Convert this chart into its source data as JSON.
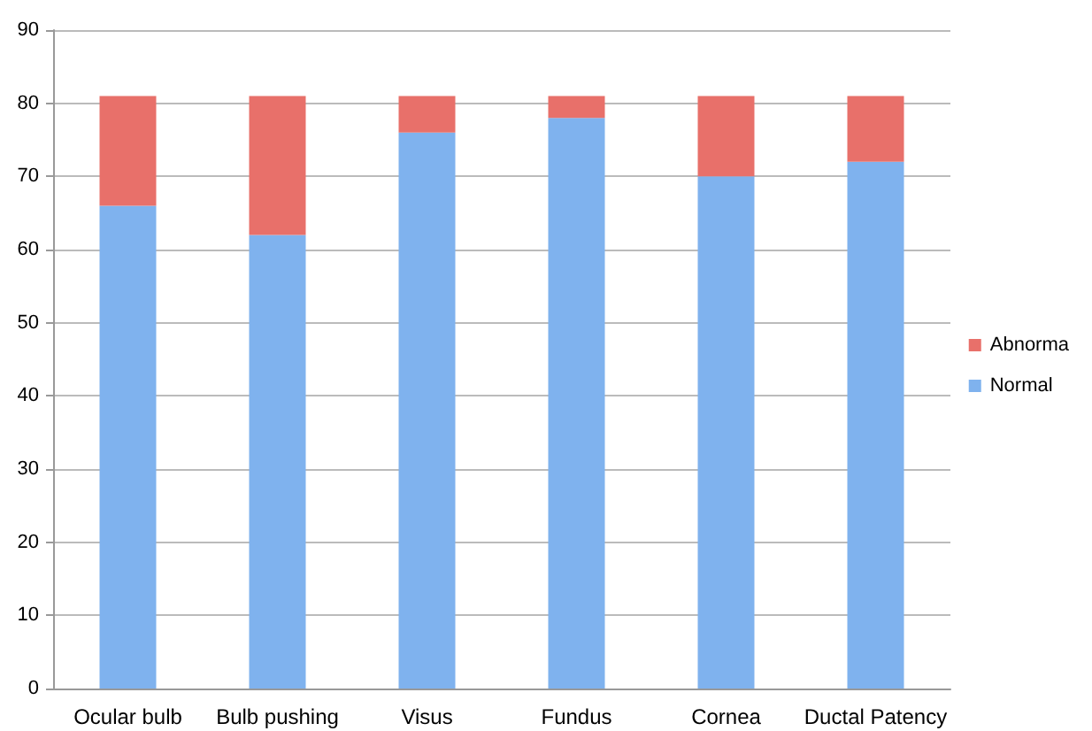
{
  "chart_data": {
    "type": "bar",
    "stacked": true,
    "categories": [
      "Ocular bulb",
      "Bulb pushing",
      "Visus",
      "Fundus",
      "Cornea",
      "Ductal Patency"
    ],
    "series": [
      {
        "name": "Normal",
        "color": "#7fb2ee",
        "values": [
          66,
          62,
          76,
          78,
          70,
          72
        ]
      },
      {
        "name": "Abnorma",
        "color": "#e8706a",
        "values": [
          15,
          19,
          5,
          3,
          11,
          9
        ]
      }
    ],
    "ylim": [
      0,
      90
    ],
    "yticks": [
      0,
      10,
      20,
      30,
      40,
      50,
      60,
      70,
      80,
      90
    ],
    "grid": "y",
    "legend": "right"
  }
}
